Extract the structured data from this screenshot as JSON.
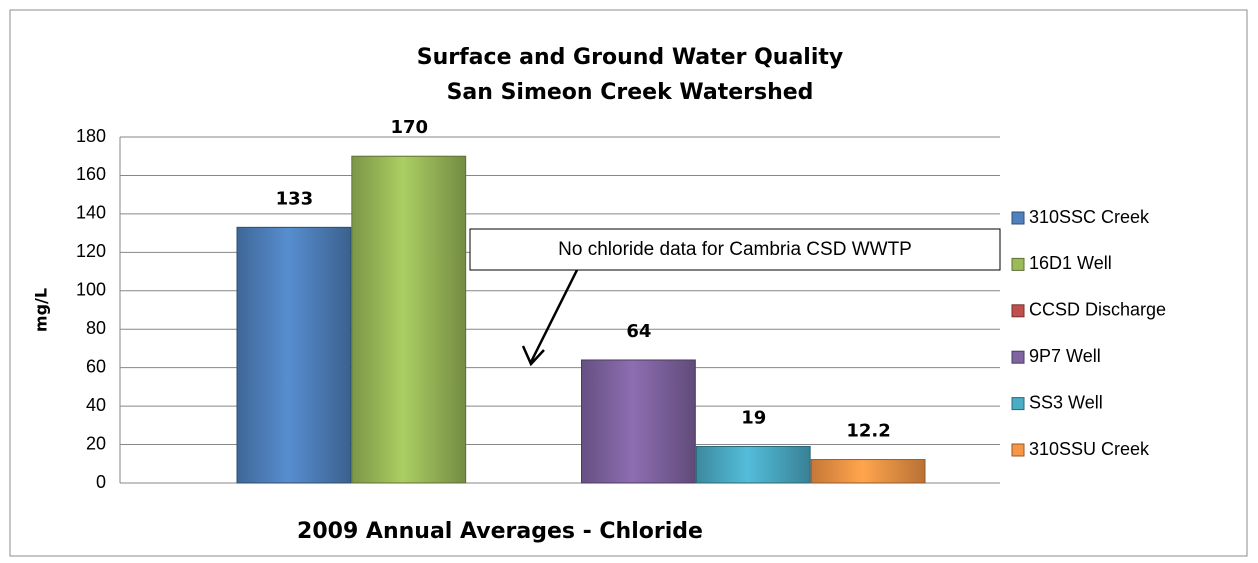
{
  "chart_data": {
    "type": "bar",
    "title": "Surface and Ground Water Quality",
    "subtitle": "San Simeon Creek Watershed",
    "x_label": "2009 Annual Averages - Chloride",
    "y_label": "mg/L",
    "annotation": "No chloride data for Cambria CSD WWTP",
    "categories": [
      null
    ],
    "series": [
      {
        "name": "310SSC Creek",
        "color": "#4f81bd",
        "values": [
          133
        ]
      },
      {
        "name": "16D1 Well",
        "color": "#9bbb59",
        "values": [
          170
        ]
      },
      {
        "name": "CCSD Discharge",
        "color": "#c0504d",
        "values": [
          null
        ]
      },
      {
        "name": "9P7 Well",
        "color": "#8064a2",
        "values": [
          64
        ]
      },
      {
        "name": "SS3 Well",
        "color": "#4bacc6",
        "values": [
          19
        ]
      },
      {
        "name": "310SSU Creek",
        "color": "#f79646",
        "values": [
          12.2
        ]
      }
    ],
    "ylim": [
      0,
      180
    ],
    "yticks": [
      0,
      20,
      40,
      60,
      80,
      100,
      120,
      140,
      160,
      180
    ],
    "grid": true,
    "legend": "right"
  }
}
